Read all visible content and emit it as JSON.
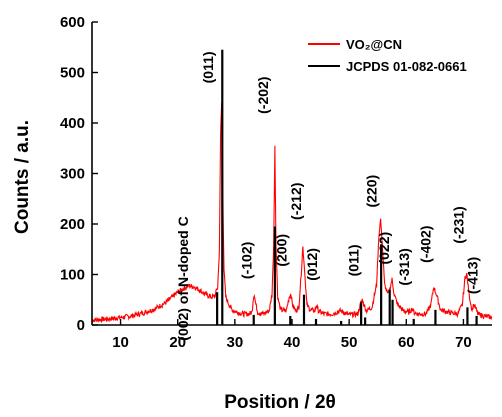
{
  "chart_data": {
    "type": "line",
    "xlabel": "Position / 2θ",
    "ylabel": "Counts / a.u.",
    "xlim": [
      5,
      75
    ],
    "ylim": [
      0,
      600
    ],
    "x_ticks": [
      "10",
      "20",
      "30",
      "40",
      "50",
      "60",
      "70"
    ],
    "y_ticks": [
      "0",
      "100",
      "200",
      "300",
      "400",
      "500",
      "600"
    ],
    "grid": false,
    "legend_position": "top-right",
    "series": [
      {
        "name": "VO₂@CN",
        "color": "#ff0000",
        "style": "line",
        "x": [
          5,
          8,
          10,
          12,
          14,
          16,
          18,
          19,
          20,
          21,
          22,
          23,
          24,
          25,
          26,
          26.5,
          27,
          27.3,
          27.5,
          27.7,
          27.9,
          28.1,
          28.4,
          28.8,
          29.5,
          30.5,
          31.5,
          32.5,
          33.0,
          33.2,
          33.4,
          33.6,
          34.0,
          35.0,
          36.0,
          36.5,
          36.8,
          37.0,
          37.2,
          37.5,
          38.0,
          39.0,
          39.5,
          39.8,
          40.1,
          40.6,
          41.2,
          41.6,
          41.9,
          42.2,
          42.6,
          43.2,
          44.0,
          44.3,
          44.6,
          45.5,
          47.0,
          48.5,
          50.0,
          51.5,
          52.0,
          52.3,
          52.6,
          53.0,
          54.0,
          54.8,
          55.2,
          55.5,
          55.8,
          56.2,
          56.8,
          57.2,
          57.5,
          57.9,
          58.5,
          59.5,
          60.5,
          61.0,
          61.4,
          62.0,
          63.5,
          64.3,
          64.8,
          65.3,
          66.0,
          67.5,
          69.0,
          69.8,
          70.3,
          70.6,
          71.0,
          71.5,
          71.8,
          72.1,
          72.5,
          73.5,
          75
        ],
        "y": [
          10,
          12,
          15,
          18,
          24,
          32,
          45,
          55,
          65,
          72,
          78,
          75,
          68,
          60,
          55,
          58,
          75,
          150,
          380,
          440,
          250,
          110,
          55,
          45,
          30,
          25,
          22,
          22,
          25,
          50,
          62,
          45,
          25,
          22,
          28,
          60,
          160,
          355,
          160,
          55,
          30,
          28,
          55,
          62,
          40,
          28,
          35,
          100,
          155,
          110,
          40,
          30,
          28,
          40,
          28,
          22,
          22,
          28,
          20,
          22,
          42,
          50,
          40,
          28,
          35,
          80,
          175,
          210,
          160,
          80,
          60,
          75,
          90,
          60,
          40,
          28,
          25,
          32,
          25,
          22,
          22,
          40,
          75,
          60,
          30,
          25,
          22,
          40,
          95,
          100,
          60,
          30,
          40,
          35,
          22,
          18,
          15
        ]
      },
      {
        "name": "JCPDS 01-082-0661",
        "color": "#000000",
        "style": "sticks",
        "x": [
          26.9,
          27.8,
          33.3,
          37.0,
          39.7,
          42.1,
          44.2,
          48.6,
          52.1,
          52.8,
          55.6,
          57.1,
          57.6,
          61.3,
          65.1,
          70.7,
          72.3
        ],
        "y": [
          65,
          545,
          20,
          195,
          18,
          60,
          12,
          8,
          45,
          15,
          160,
          70,
          50,
          12,
          30,
          35,
          18
        ]
      }
    ],
    "annotations": [
      {
        "text": "(011)",
        "x": 26.2,
        "y": 510,
        "color": "#000000"
      },
      {
        "text": "(-202)",
        "x": 35.8,
        "y": 455,
        "color": "#000000"
      },
      {
        "text": "(-102)",
        "x": 32.9,
        "y": 128,
        "color": "#000000"
      },
      {
        "text": "(200)",
        "x": 39.0,
        "y": 148,
        "color": "#000000"
      },
      {
        "text": "(-212)",
        "x": 41.6,
        "y": 245,
        "color": "#000000"
      },
      {
        "text": "(012)",
        "x": 44.4,
        "y": 120,
        "color": "#000000"
      },
      {
        "text": "(011)",
        "x": 51.6,
        "y": 128,
        "color": "#000000"
      },
      {
        "text": "(220)",
        "x": 54.8,
        "y": 265,
        "color": "#000000"
      },
      {
        "text": "(022)",
        "x": 57.0,
        "y": 152,
        "color": "#000000"
      },
      {
        "text": "(-313)",
        "x": 60.5,
        "y": 115,
        "color": "#000000"
      },
      {
        "text": "(-402)",
        "x": 64.2,
        "y": 160,
        "color": "#000000"
      },
      {
        "text": "(-231)",
        "x": 70.0,
        "y": 198,
        "color": "#000000"
      },
      {
        "text": "(-413)",
        "x": 72.5,
        "y": 98,
        "color": "#000000"
      },
      {
        "text": "(002) of N-doped C",
        "x": 21.8,
        "y": 92,
        "color": "#1f3f8f"
      }
    ],
    "legend": [
      {
        "label": "VO₂@CN",
        "color": "#ff0000"
      },
      {
        "label": "JCPDS 01-082-0661",
        "color": "#000000"
      }
    ]
  }
}
